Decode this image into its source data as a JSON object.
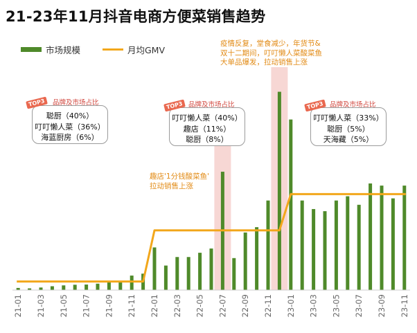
{
  "title": "21-23年11月抖音电商方便菜销售趋势",
  "legend": {
    "bar_label": "市场规模",
    "line_label": "月均GMV"
  },
  "colors": {
    "bar": "#4f8a2a",
    "line": "#f2a71b",
    "highlight": "#f4c9c5",
    "box_title": "#d0443b",
    "note": "#e28b16"
  },
  "annotations": {
    "top3_badge": "TOP3",
    "box_title": "品牌及市场占比",
    "box1": {
      "lines": [
        "聪厨（40%）",
        "叮叮懒人菜（36%）",
        "海蓝厨房（6%）"
      ]
    },
    "box2": {
      "lines": [
        "叮叮懒人菜（40%）",
        "趣店（11%）",
        "聪厨（8%）"
      ]
    },
    "box3": {
      "lines": [
        "叮叮懒人菜（33%）",
        "聪厨（5%）",
        "天海藏（5%）"
      ]
    },
    "note1": [
      "趣店'1分钱酸菜鱼'",
      "拉动销售上涨"
    ],
    "note2": [
      "疫情反复，堂食减少，年货节&",
      "双十二期间，叮叮懒人菜酸菜鱼",
      "大单品爆发，拉动销售上涨"
    ]
  },
  "chart_data": {
    "type": "bar",
    "x": [
      "21-01",
      "21-02",
      "21-03",
      "21-04",
      "21-05",
      "21-06",
      "21-07",
      "21-08",
      "21-09",
      "21-10",
      "21-11",
      "21-12",
      "22-01",
      "22-02",
      "22-03",
      "22-04",
      "22-05",
      "22-06",
      "22-07",
      "22-08",
      "22-09",
      "22-10",
      "22-11",
      "22-12",
      "23-01",
      "23-02",
      "23-03",
      "23-04",
      "23-05",
      "23-06",
      "23-07",
      "23-08",
      "23-09",
      "23-10",
      "23-11"
    ],
    "xtick_labels": [
      "21-01",
      "21-03",
      "21-05",
      "21-07",
      "21-09",
      "21-11",
      "22-01",
      "22-03",
      "22-05",
      "22-07",
      "22-09",
      "22-11",
      "23-01",
      "23-03",
      "23-05",
      "23-07",
      "23-09",
      "23-11"
    ],
    "series": [
      {
        "name": "市场规模",
        "type": "bar",
        "values": [
          1.0,
          0.8,
          1.2,
          1.8,
          2.2,
          2.5,
          2.6,
          3.0,
          3.6,
          4.2,
          6.8,
          7.7,
          20.0,
          11.5,
          15.5,
          15.5,
          17.5,
          19.5,
          55.5,
          15.0,
          27.0,
          29.5,
          42.0,
          93.0,
          80.0,
          42.0,
          38.0,
          37.0,
          42.0,
          44.0,
          40.0,
          50.0,
          49.0,
          43.0,
          49.0
        ]
      },
      {
        "name": "月均GMV",
        "type": "line",
        "step": true,
        "segments": [
          {
            "from": "21-01",
            "to": "21-12",
            "value": 4.0
          },
          {
            "from": "22-01",
            "to": "22-12",
            "value": 28.0
          },
          {
            "from": "23-01",
            "to": "23-11",
            "value": 45.0
          }
        ]
      }
    ],
    "highlighted": [
      "22-07",
      "22-12"
    ],
    "ylim": [
      0,
      100
    ]
  }
}
